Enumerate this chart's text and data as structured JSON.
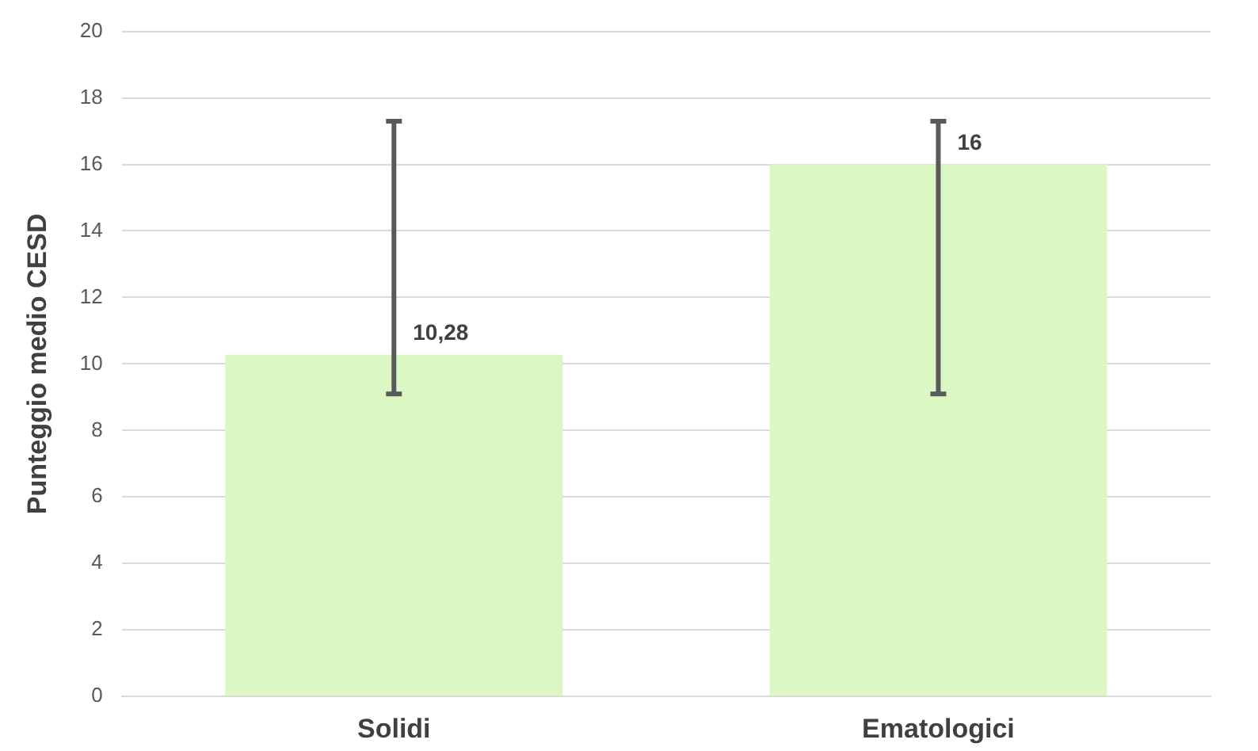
{
  "chart_data": {
    "type": "bar",
    "ylabel": "Punteggio medio CESD",
    "categories": [
      "Solidi",
      "Ematologici"
    ],
    "values": [
      10.28,
      16
    ],
    "color": "#dbf8c4",
    "errors": [
      [
        9.1,
        17.3
      ],
      [
        9.1,
        17.3
      ]
    ],
    "value_labels": [
      "10,28",
      "16"
    ],
    "ylim": [
      0,
      20
    ],
    "yticks": [
      0,
      2,
      4,
      6,
      8,
      10,
      12,
      14,
      16,
      18,
      20
    ],
    "grid": "y",
    "legend": false
  }
}
